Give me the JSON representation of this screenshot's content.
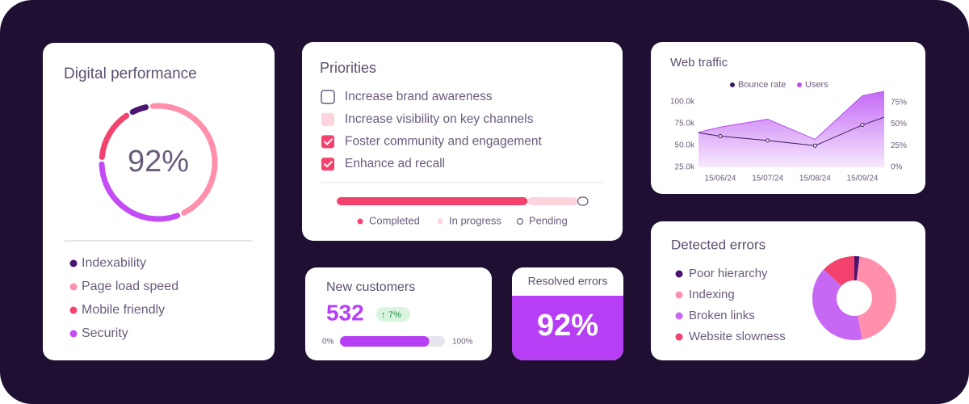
{
  "digital_performance": {
    "title": "Digital performance",
    "value": 92,
    "value_label": "92%",
    "items": [
      {
        "name": "Indexability",
        "value": 4,
        "color": "#4b1470"
      },
      {
        "name": "Page load speed",
        "value": 44,
        "color": "#ff8fab"
      },
      {
        "name": "Mobile friendly",
        "value": 14,
        "color": "#f4426e"
      },
      {
        "name": "Security",
        "value": 30,
        "color": "#c34cf5"
      }
    ]
  },
  "priorities": {
    "title": "Priorities",
    "items": [
      {
        "text": "Increase brand awareness",
        "status": "pending"
      },
      {
        "text": "Increase visibility on key channels",
        "status": "in progress"
      },
      {
        "text": "Foster community and engagement",
        "status": "completed"
      },
      {
        "text": "Enhance ad recall",
        "status": "completed"
      }
    ],
    "progress": [
      {
        "name": "Completed",
        "value": 76,
        "color": "#f4426e"
      },
      {
        "name": "In progress",
        "value": 20,
        "color": "#fdd3de"
      },
      {
        "name": "Pending",
        "value": 4,
        "color": "#ffffff"
      }
    ]
  },
  "web_traffic": {
    "type": "line",
    "title": "Web traffic",
    "categories": [
      null,
      "15/06/24",
      "15/07/24",
      "15/08/24",
      "15/09/24",
      null
    ],
    "series": [
      {
        "name": "Bounce rate",
        "color": "#3d1a5c",
        "axis": "y2",
        "values": [
          40,
          36,
          31,
          25,
          49,
          58
        ]
      },
      {
        "name": "Users",
        "color": "#c34cf5",
        "values": [
          65000,
          71000,
          80000,
          57000,
          107000,
          112000
        ]
      }
    ],
    "ylim": [
      25000,
      112000
    ],
    "yticks": [
      {
        "value": 25000,
        "label": "25.0k"
      },
      {
        "value": 50000,
        "label": "50.0k"
      },
      {
        "value": 75000,
        "label": "75.0k"
      },
      {
        "value": 100000,
        "label": "100.0k"
      }
    ],
    "y2lim": [
      0,
      88
    ],
    "y2ticks": [
      {
        "value": 0,
        "label": "0%"
      },
      {
        "value": 25,
        "label": "25%"
      },
      {
        "value": 50,
        "label": "50%"
      },
      {
        "value": 75,
        "label": "75%"
      }
    ]
  },
  "new_customers": {
    "title": "New customers",
    "value": 532,
    "change": 7,
    "change_label": "7%",
    "progress": 85,
    "min": {
      "value": 0,
      "label": "0%"
    },
    "max": {
      "value": 100,
      "label": "100%"
    }
  },
  "resolved_errors": {
    "title": "Resolved errors",
    "value": 92,
    "value_label": "92%"
  },
  "detected_errors": {
    "title": "Detected errors",
    "items": [
      {
        "name": "Poor hierarchy",
        "value": 2,
        "color": "#4b1470"
      },
      {
        "name": "Indexing",
        "value": 45,
        "color": "#ff8fab"
      },
      {
        "name": "Broken links",
        "value": 40,
        "color": "#c768f5"
      },
      {
        "name": "Website slowness",
        "value": 13,
        "color": "#f4426e"
      }
    ]
  }
}
